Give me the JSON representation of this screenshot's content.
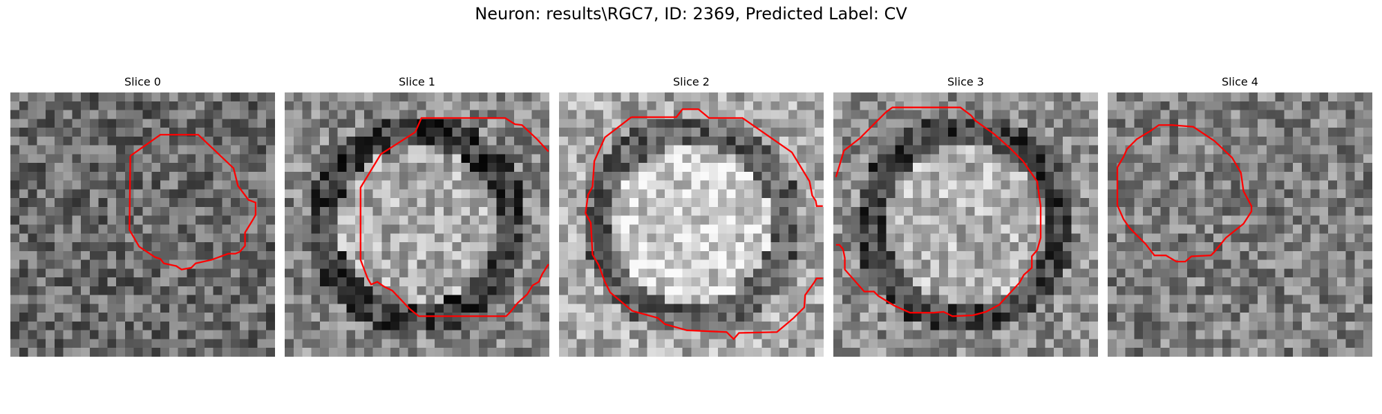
{
  "figure": {
    "title": "Neuron: results\\RGC7, ID: 2369, Predicted Label: CV"
  },
  "panels": [
    {
      "title": "Slice 0",
      "grayscale_mean": 0.42,
      "contour_color": "#ff0000"
    },
    {
      "title": "Slice 1",
      "grayscale_mean": 0.52,
      "contour_color": "#ff0000"
    },
    {
      "title": "Slice 2",
      "grayscale_mean": 0.66,
      "contour_color": "#ff0000"
    },
    {
      "title": "Slice 3",
      "grayscale_mean": 0.55,
      "contour_color": "#ff0000"
    },
    {
      "title": "Slice 4",
      "grayscale_mean": 0.5,
      "contour_color": "#ff0000"
    }
  ]
}
